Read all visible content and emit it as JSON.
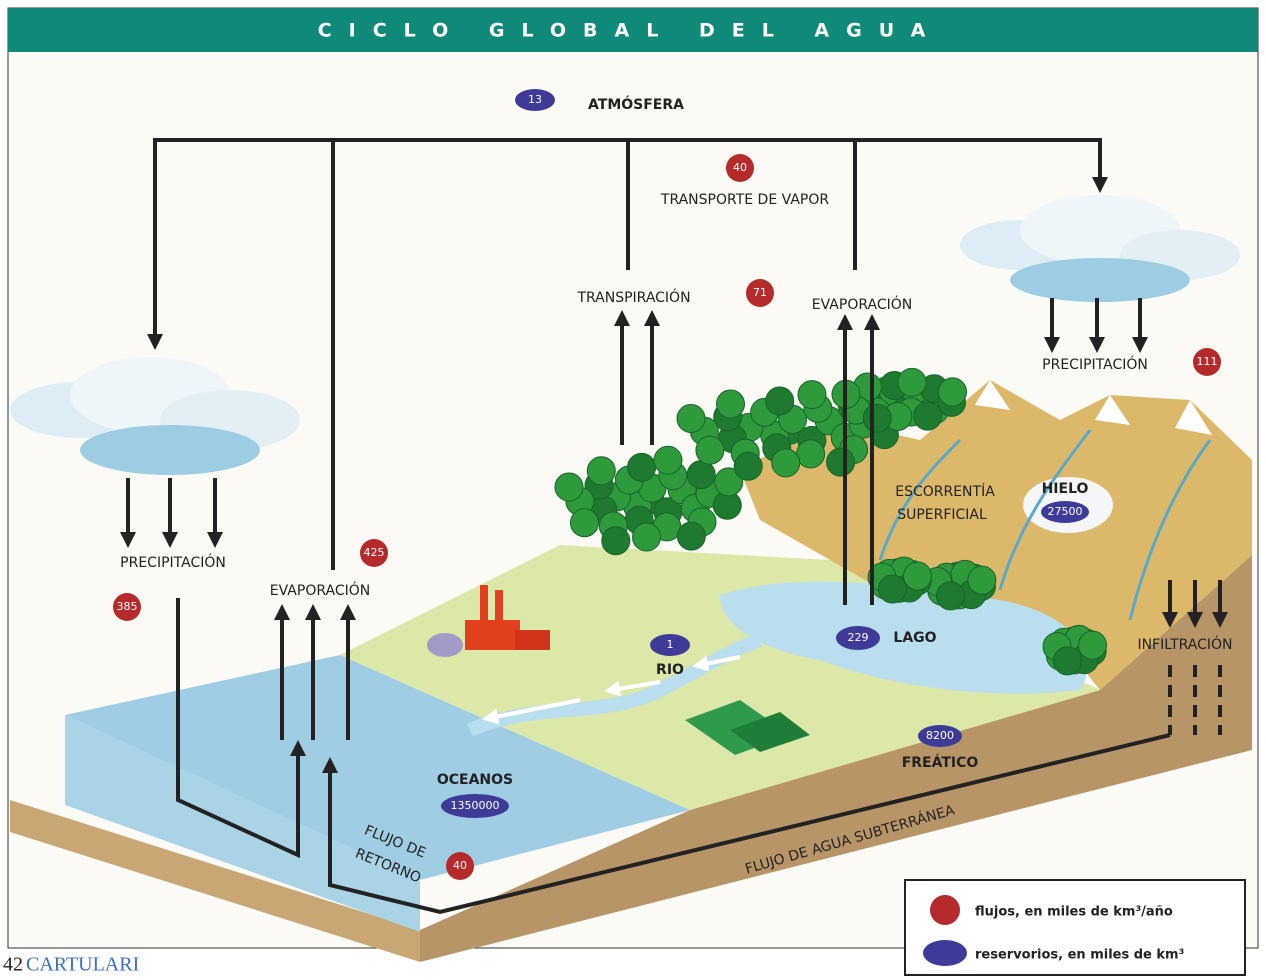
{
  "title": "CICLO GLOBAL DEL AGUA",
  "atmosphere": {
    "label": "ATMÓSFERA",
    "value": 13
  },
  "vapor_transport": {
    "label": "TRANSPORTE DE VAPOR",
    "value": 40
  },
  "transpiration": {
    "label": "TRANSPIRACIÓN",
    "value": 71
  },
  "lake_evaporation": {
    "label": "EVAPORACIÓN"
  },
  "land_precipitation": {
    "label": "PRECIPITACIÓN",
    "value": 111
  },
  "ocean_precipitation": {
    "label": "PRECIPITACIÓN",
    "value": 385
  },
  "ocean_evaporation": {
    "label": "EVAPORACIÓN",
    "value": 425
  },
  "runoff": {
    "label": [
      "ESCORRENTÍA",
      "SUPERFICIAL"
    ]
  },
  "ice": {
    "label": "HIELO",
    "value": 27500
  },
  "infiltration": {
    "label": "INFILTRACIÓN"
  },
  "river": {
    "label": "RIO",
    "value": 1
  },
  "lake": {
    "label": "LAGO",
    "value": 229
  },
  "groundwater": {
    "label": "FREÁTICO",
    "value": 8200
  },
  "ocean": {
    "label": "OCEANOS",
    "value": 1350000
  },
  "return_flow": {
    "label": [
      "FLUJO DE",
      "RETORNO"
    ],
    "value": 40
  },
  "subsurface_flow": {
    "label": "FLUJO DE AGUA SUBTERRÁNEA"
  },
  "legend": {
    "flux": "flujos, en miles de km³/año",
    "reservoir": "reservorios, en miles de km³"
  },
  "footer": {
    "page": "42",
    "publication": "CARTULARI"
  }
}
